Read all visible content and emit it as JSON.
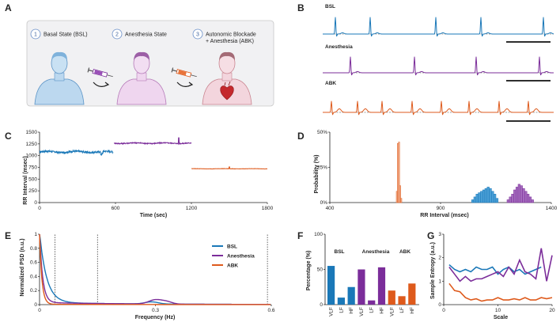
{
  "panel_letters": {
    "a": "A",
    "b": "B",
    "c": "C",
    "d": "D",
    "e": "E",
    "f": "F",
    "g": "G"
  },
  "colors": {
    "bsl": "#1a78b8",
    "anesthesia": "#7b2d9a",
    "abk": "#de5a1c",
    "axis": "#222222",
    "schematic_bg": "#f1f1f3",
    "schematic_border": "#c8c8c8"
  },
  "schematic": {
    "steps": [
      {
        "num": "1",
        "line1": "Basal State (BSL)",
        "line2": "",
        "line3": ""
      },
      {
        "num": "2",
        "line1": "Anesthesia State",
        "line2": "",
        "line3": ""
      },
      {
        "num": "3",
        "line1": "Autonomic Blockade",
        "line2": "+ Anesthesia (ABK)",
        "line3": ""
      }
    ],
    "icons": [
      "person-blue-icon",
      "syringe-purple-icon",
      "arrow-curved-icon",
      "person-purple-icon",
      "syringe-orange-icon",
      "arrow-curved-icon",
      "person-pink-heart-icon"
    ]
  },
  "chart_data": [
    {
      "panel": "B",
      "type": "line",
      "series": [
        {
          "name": "BSL",
          "peak_count": 6,
          "peak_height": 1.0
        },
        {
          "name": "Anesthesia",
          "peak_count": 5,
          "peak_height": 1.0
        },
        {
          "name": "ABK",
          "peak_count": 8,
          "peak_height": 1.0
        }
      ],
      "scale_bar": "time scale bar"
    },
    {
      "panel": "C",
      "type": "line",
      "xlabel": "Time (sec)",
      "ylabel": "RR Interval (msec)",
      "xlim": [
        0,
        1800
      ],
      "ylim": [
        0,
        1500
      ],
      "xticks": [
        "0",
        "600",
        "1200",
        "1800"
      ],
      "yticks": [
        "0",
        "250",
        "500",
        "750",
        "1000",
        "1250",
        "1500"
      ],
      "series": [
        {
          "name": "BSL",
          "x_start": 0,
          "x_end": 580,
          "mean": 1080,
          "noise": 40
        },
        {
          "name": "Anesthesia",
          "x_start": 590,
          "x_end": 1200,
          "mean": 1265,
          "noise": 20,
          "spike_at": 1100,
          "spike_to": 1380
        },
        {
          "name": "ABK",
          "x_start": 1200,
          "x_end": 1800,
          "mean": 720,
          "noise": 6,
          "spike_at": 1500,
          "spike_to": 760
        }
      ]
    },
    {
      "panel": "D",
      "type": "bar",
      "xlabel": "RR Interval (msec)",
      "ylabel": "Probability (%)",
      "xlim": [
        400,
        1400
      ],
      "ylim": [
        0,
        50
      ],
      "xticks": [
        "400",
        "900",
        "1400"
      ],
      "yticks": [
        "0%",
        "25%",
        "50%"
      ],
      "series": [
        {
          "name": "ABK",
          "bins": [
            700,
            705,
            710,
            715,
            720
          ],
          "values": [
            8,
            42,
            43,
            12,
            3
          ]
        },
        {
          "name": "BSL",
          "bins": [
            1040,
            1050,
            1060,
            1070,
            1080,
            1090,
            1100,
            1110,
            1120,
            1130,
            1140,
            1150
          ],
          "values": [
            2,
            4,
            6,
            7,
            8,
            9,
            10,
            11,
            10,
            8,
            6,
            3
          ]
        },
        {
          "name": "Anesthesia",
          "bins": [
            1200,
            1210,
            1220,
            1230,
            1240,
            1250,
            1260,
            1270,
            1280,
            1290,
            1300,
            1310
          ],
          "values": [
            2,
            4,
            6,
            9,
            11,
            13,
            12,
            10,
            8,
            6,
            4,
            2
          ]
        }
      ]
    },
    {
      "panel": "E",
      "type": "line",
      "xlabel": "Frequency (Hz)",
      "ylabel": "Normalized PSD (n.u.)",
      "xlim": [
        0,
        0.6
      ],
      "ylim": [
        0,
        1
      ],
      "xticks": [
        "0",
        "0.3",
        "0.6"
      ],
      "yticks": [
        "0",
        "0.2",
        "0.4",
        "0.6",
        "0.8",
        "1"
      ],
      "band_lines": [
        0.04,
        0.15,
        0.59
      ],
      "legend": [
        "BSL",
        "Anesthesia",
        "ABK"
      ],
      "series": [
        {
          "name": "BSL",
          "decay": 0.018,
          "floor": 0.03,
          "bump_at": 0.29,
          "bump": 0.03
        },
        {
          "name": "Anesthesia",
          "decay": 0.008,
          "floor": 0.03,
          "bump_at": 0.3,
          "bump": 0.06
        },
        {
          "name": "ABK",
          "decay": 0.006,
          "floor": 0.005,
          "bump_at": 0.3,
          "bump": 0.0
        }
      ]
    },
    {
      "panel": "F",
      "type": "bar",
      "ylabel": "Percentage (%)",
      "ylim": [
        0,
        100
      ],
      "yticks": [
        "0",
        "50",
        "100"
      ],
      "group_labels": [
        "BSL",
        "Anesthesia",
        "ABK"
      ],
      "categories": [
        "VLF",
        "LF",
        "HF",
        "VLF",
        "LF",
        "HF",
        "VLF",
        "LF",
        "HF"
      ],
      "values": [
        55,
        10,
        25,
        50,
        6,
        53,
        20,
        12,
        30
      ],
      "series_index": [
        0,
        0,
        0,
        1,
        1,
        1,
        2,
        2,
        2
      ]
    },
    {
      "panel": "G",
      "type": "line",
      "xlabel": "Scale",
      "ylabel": "Sample Entropy (a.u.)",
      "xlim": [
        0,
        20
      ],
      "ylim": [
        0,
        3
      ],
      "xticks": [
        "0",
        "10",
        "20"
      ],
      "yticks": [
        "0",
        "1",
        "2",
        "3"
      ],
      "series": [
        {
          "name": "BSL",
          "x": [
            1,
            2,
            3,
            4,
            5,
            6,
            7,
            8,
            9,
            10,
            11,
            12,
            13,
            14,
            15,
            16,
            17,
            18
          ],
          "values": [
            1.7,
            1.5,
            1.4,
            1.5,
            1.4,
            1.6,
            1.5,
            1.5,
            1.6,
            1.3,
            1.5,
            1.6,
            1.4,
            1.5,
            1.3,
            1.4,
            1.5,
            1.6
          ]
        },
        {
          "name": "Anesthesia",
          "x": [
            1,
            2,
            3,
            4,
            5,
            6,
            7,
            8,
            9,
            10,
            11,
            12,
            13,
            14,
            15,
            16,
            17,
            18,
            19,
            20
          ],
          "values": [
            1.6,
            1.3,
            1.0,
            1.2,
            1.0,
            1.1,
            1.1,
            1.2,
            1.3,
            1.4,
            1.2,
            1.6,
            1.3,
            1.9,
            1.4,
            1.3,
            1.1,
            2.4,
            1.0,
            2.1
          ]
        },
        {
          "name": "ABK",
          "x": [
            1,
            2,
            3,
            4,
            5,
            6,
            7,
            8,
            9,
            10,
            11,
            12,
            13,
            14,
            15,
            16,
            17,
            18,
            19,
            20
          ],
          "values": [
            0.9,
            0.6,
            0.55,
            0.3,
            0.2,
            0.25,
            0.15,
            0.2,
            0.2,
            0.3,
            0.2,
            0.2,
            0.25,
            0.2,
            0.3,
            0.2,
            0.2,
            0.3,
            0.25,
            0.3
          ]
        }
      ]
    }
  ]
}
